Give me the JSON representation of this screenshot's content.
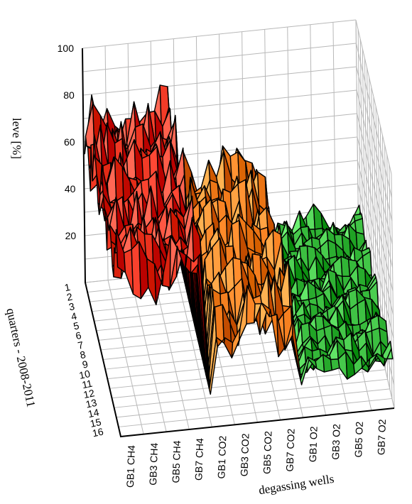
{
  "chart_data": {
    "type": "surface3d",
    "title": "",
    "zlabel": "leve [%]",
    "xlabel": "degassing wells",
    "ylabel": "quarters - 2008-2011",
    "zlim": [
      0,
      100
    ],
    "zticks": [
      "100",
      "80",
      "60",
      "40",
      "20"
    ],
    "wells": [
      "GB1 CH4",
      "GB3 CH4",
      "GB5 CH4",
      "GB7 CH4",
      "GB1 CO2",
      "GB3  CO2",
      "GB5 CO2",
      "GB7 CO2",
      "GB1 O2",
      "GB3  O2",
      "GB5  O2",
      "GB7 O2"
    ],
    "quarters": [
      "1",
      "2",
      "3",
      "4",
      "5",
      "6",
      "7",
      "8",
      "9",
      "10",
      "11",
      "12",
      "13",
      "14",
      "15",
      "16"
    ],
    "groups": [
      {
        "gas": "CH4",
        "wells": [
          0,
          3
        ],
        "color": "#e8301c",
        "mean_level": 68
      },
      {
        "gas": "CO2",
        "wells": [
          4,
          7
        ],
        "color": "#f07a1a",
        "mean_level": 40
      },
      {
        "gas": "O2",
        "wells": [
          8,
          11
        ],
        "color": "#35b83a",
        "mean_level": 18
      }
    ],
    "grid": true
  }
}
